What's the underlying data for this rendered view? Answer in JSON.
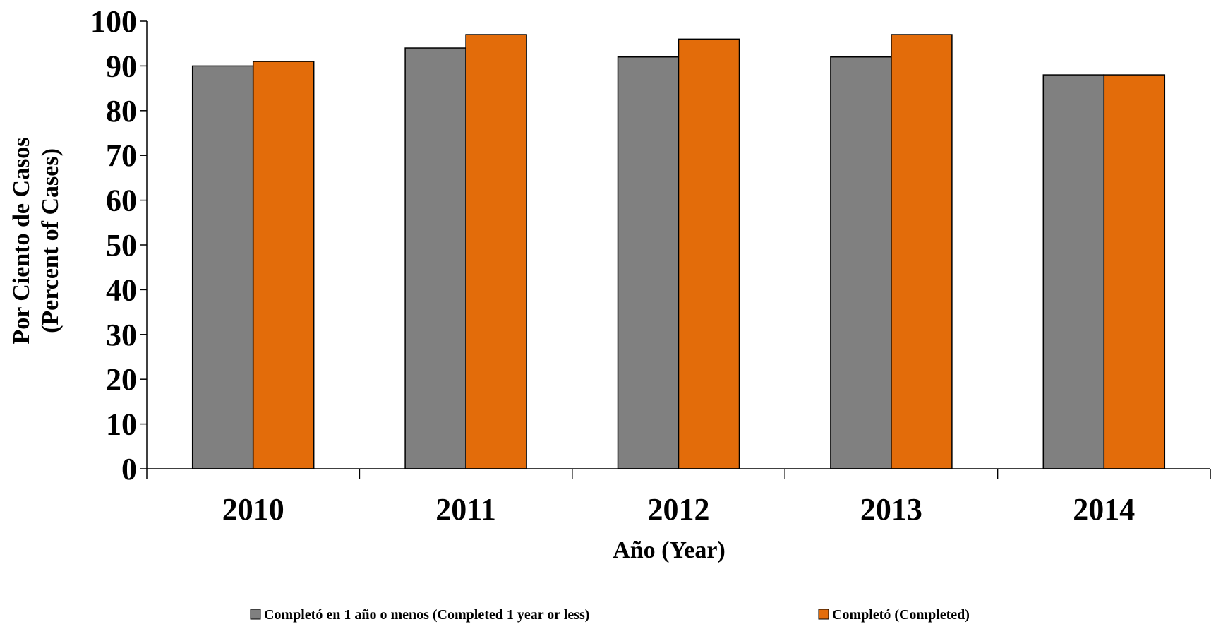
{
  "chart_data": {
    "type": "bar",
    "categories": [
      "2010",
      "2011",
      "2012",
      "2013",
      "2014"
    ],
    "series": [
      {
        "name": "Completó en 1 año o menos (Completed 1 year or less)",
        "values": [
          90,
          94,
          92,
          92,
          88
        ],
        "color": "#808080"
      },
      {
        "name": "Completó (Completed)",
        "values": [
          91,
          97,
          96,
          97,
          88
        ],
        "color": "#E36C0A"
      }
    ],
    "xlabel": "Año (Year)",
    "ylabel_lines": [
      "Por Ciento de Casos",
      "(Percent of Cases)"
    ],
    "ylim": [
      0,
      100
    ],
    "yticks": [
      0,
      10,
      20,
      30,
      40,
      50,
      60,
      70,
      80,
      90,
      100
    ],
    "grid": false,
    "legend_position": "bottom"
  }
}
